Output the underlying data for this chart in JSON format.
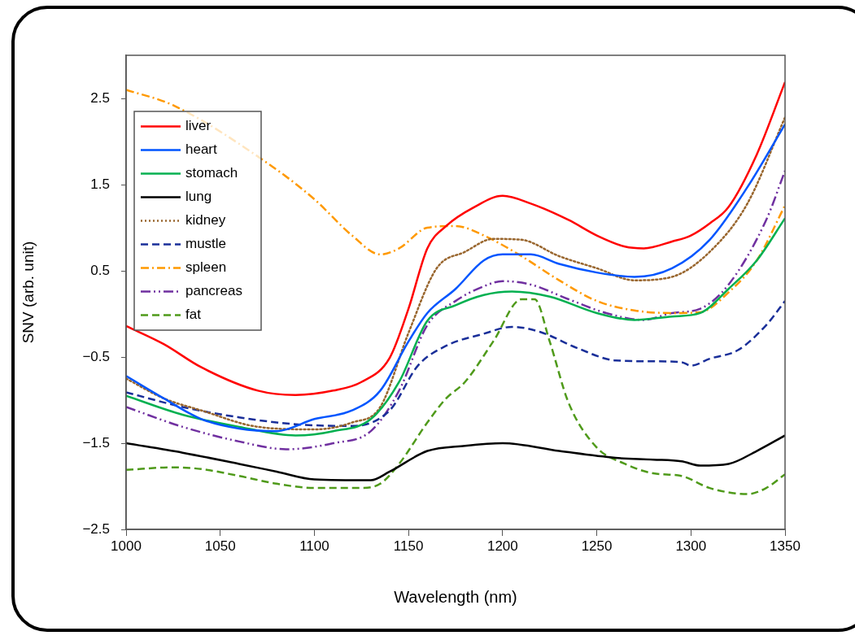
{
  "chart_data": {
    "type": "line",
    "xlabel": "Wavelength (nm)",
    "ylabel": "SNV (arb. unit)",
    "xlim": [
      1000,
      1350
    ],
    "xticks": [
      1000,
      1050,
      1100,
      1150,
      1200,
      1250,
      1300,
      1350
    ],
    "ylim": [
      -2.5,
      3
    ],
    "yticks": [
      -2.5,
      -1.5,
      -0.5,
      0.5,
      1.5,
      2.5
    ],
    "legend": "top left",
    "marker": "none",
    "series": [
      {
        "name": "liver",
        "color": "#ff0000",
        "line_style": "solid",
        "x": [
          1000,
          1020,
          1040,
          1070,
          1090,
          1110,
          1125,
          1140,
          1150,
          1160,
          1170,
          1185,
          1200,
          1215,
          1235,
          1250,
          1265,
          1275,
          1290,
          1300,
          1310,
          1320,
          1335,
          1350
        ],
        "values": [
          -0.14,
          -0.35,
          -0.62,
          -0.89,
          -0.94,
          -0.89,
          -0.79,
          -0.51,
          0.06,
          0.76,
          1.02,
          1.24,
          1.37,
          1.28,
          1.09,
          0.91,
          0.78,
          0.76,
          0.84,
          0.91,
          1.05,
          1.24,
          1.85,
          2.69
        ]
      },
      {
        "name": "heart",
        "color": "#0055ff",
        "line_style": "solid",
        "x": [
          1000,
          1020,
          1040,
          1060,
          1080,
          1100,
          1120,
          1135,
          1150,
          1160,
          1175,
          1190,
          1200,
          1215,
          1230,
          1250,
          1270,
          1290,
          1310,
          1330,
          1350
        ],
        "values": [
          -0.72,
          -0.98,
          -1.22,
          -1.33,
          -1.36,
          -1.22,
          -1.12,
          -0.89,
          -0.32,
          0.01,
          0.29,
          0.62,
          0.69,
          0.69,
          0.58,
          0.48,
          0.43,
          0.53,
          0.86,
          1.47,
          2.2
        ]
      },
      {
        "name": "stomach",
        "color": "#00b050",
        "line_style": "solid",
        "x": [
          1000,
          1030,
          1060,
          1090,
          1110,
          1130,
          1145,
          1160,
          1175,
          1190,
          1205,
          1225,
          1250,
          1270,
          1290,
          1305,
          1320,
          1335,
          1350
        ],
        "values": [
          -0.95,
          -1.17,
          -1.31,
          -1.41,
          -1.36,
          -1.22,
          -0.79,
          -0.08,
          0.1,
          0.22,
          0.26,
          0.2,
          0.01,
          -0.07,
          -0.03,
          0.01,
          0.29,
          0.62,
          1.11
        ]
      },
      {
        "name": "lung",
        "color": "#000000",
        "line_style": "solid",
        "x": [
          1000,
          1030,
          1060,
          1080,
          1100,
          1130,
          1140,
          1160,
          1180,
          1200,
          1230,
          1260,
          1280,
          1295,
          1305,
          1320,
          1335,
          1350
        ],
        "values": [
          -1.5,
          -1.61,
          -1.74,
          -1.83,
          -1.92,
          -1.93,
          -1.83,
          -1.59,
          -1.53,
          -1.5,
          -1.59,
          -1.67,
          -1.69,
          -1.71,
          -1.76,
          -1.74,
          -1.59,
          -1.41
        ]
      },
      {
        "name": "kidney",
        "color": "#99662e",
        "line_style": "dotted",
        "x": [
          1000,
          1020,
          1040,
          1070,
          1100,
          1120,
          1135,
          1150,
          1165,
          1180,
          1195,
          1210,
          1230,
          1250,
          1270,
          1290,
          1310,
          1330,
          1350
        ],
        "values": [
          -0.75,
          -0.98,
          -1.12,
          -1.31,
          -1.34,
          -1.26,
          -1.08,
          -0.22,
          0.53,
          0.72,
          0.87,
          0.86,
          0.67,
          0.53,
          0.39,
          0.43,
          0.72,
          1.28,
          2.28
        ]
      },
      {
        "name": "mustle",
        "color": "#1a2f99",
        "line_style": "dashed",
        "x": [
          1000,
          1030,
          1060,
          1090,
          1120,
          1140,
          1155,
          1170,
          1190,
          1205,
          1220,
          1240,
          1260,
          1280,
          1295,
          1300,
          1310,
          1325,
          1340,
          1350
        ],
        "values": [
          -0.91,
          -1.08,
          -1.2,
          -1.28,
          -1.3,
          -1.12,
          -0.6,
          -0.37,
          -0.23,
          -0.15,
          -0.21,
          -0.4,
          -0.54,
          -0.55,
          -0.56,
          -0.6,
          -0.52,
          -0.42,
          -0.13,
          0.15
        ]
      },
      {
        "name": "spleen",
        "color": "#ff9900",
        "line_style": "dashdot",
        "x": [
          1000,
          1025,
          1075,
          1100,
          1120,
          1135,
          1145,
          1160,
          1175,
          1190,
          1210,
          1230,
          1250,
          1270,
          1290,
          1305,
          1320,
          1335,
          1350
        ],
        "values": [
          2.6,
          2.42,
          1.75,
          1.33,
          0.91,
          0.69,
          0.76,
          1.0,
          1.02,
          0.91,
          0.67,
          0.39,
          0.15,
          0.04,
          0.01,
          0.02,
          0.25,
          0.62,
          1.26
        ]
      },
      {
        "name": "pancreas",
        "color": "#7030a0",
        "line_style": "dashdotdot",
        "x": [
          1000,
          1030,
          1060,
          1085,
          1110,
          1130,
          1145,
          1160,
          1175,
          1190,
          1200,
          1215,
          1235,
          1255,
          1275,
          1290,
          1305,
          1320,
          1340,
          1350
        ],
        "values": [
          -1.08,
          -1.31,
          -1.48,
          -1.57,
          -1.5,
          -1.36,
          -0.89,
          -0.13,
          0.15,
          0.32,
          0.38,
          0.34,
          0.17,
          0.01,
          -0.07,
          0.01,
          0.06,
          0.34,
          1.09,
          1.66
        ]
      },
      {
        "name": "fat",
        "color": "#4f9a1a",
        "line_style": "dashed",
        "x": [
          1000,
          1025,
          1040,
          1060,
          1080,
          1100,
          1125,
          1135,
          1145,
          1160,
          1170,
          1180,
          1195,
          1210,
          1217,
          1225,
          1235,
          1250,
          1265,
          1280,
          1295,
          1310,
          1330,
          1340,
          1350
        ],
        "values": [
          -1.81,
          -1.78,
          -1.8,
          -1.88,
          -1.97,
          -2.02,
          -2.02,
          -1.97,
          -1.74,
          -1.26,
          -0.98,
          -0.79,
          -0.32,
          0.17,
          0.17,
          -0.32,
          -1.03,
          -1.55,
          -1.74,
          -1.85,
          -1.88,
          -2.02,
          -2.09,
          -2.02,
          -1.86
        ]
      }
    ]
  }
}
